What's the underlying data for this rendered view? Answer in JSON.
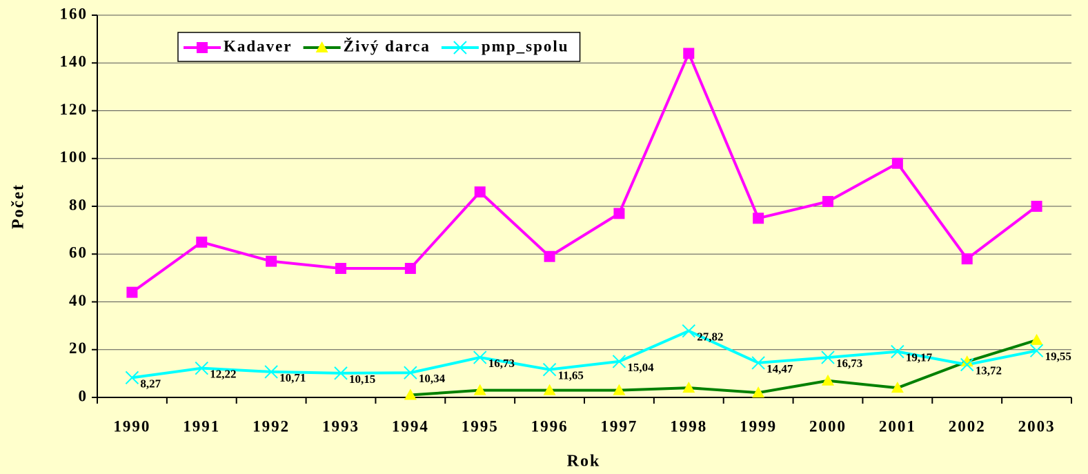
{
  "chart_data": {
    "type": "line",
    "x_label": "Rok",
    "y_label": "Počet",
    "categories": [
      "1990",
      "1991",
      "1992",
      "1993",
      "1994",
      "1995",
      "1996",
      "1997",
      "1998",
      "1999",
      "2000",
      "2001",
      "2002",
      "2003"
    ],
    "series": [
      {
        "name": "Kadaver",
        "color": "#ff00ff",
        "marker": "square",
        "values": [
          44,
          65,
          57,
          54,
          54,
          86,
          59,
          77,
          144,
          75,
          82,
          98,
          58,
          80
        ]
      },
      {
        "name": "Živý darca",
        "color": "#008000",
        "marker_color": "#ffff00",
        "marker": "triangle",
        "values": [
          null,
          null,
          null,
          null,
          1,
          3,
          3,
          3,
          4,
          2,
          7,
          4,
          15,
          24
        ]
      },
      {
        "name": "pmp_spolu",
        "color": "#00ffff",
        "marker": "x",
        "values": [
          8.27,
          12.22,
          10.71,
          10.15,
          10.34,
          16.73,
          11.65,
          15.04,
          27.82,
          14.47,
          16.73,
          19.17,
          13.72,
          19.55
        ],
        "value_labels": [
          "8,27",
          "12,22",
          "10,71",
          "10,15",
          "10,34",
          "16,73",
          "11,65",
          "15,04",
          "27,82",
          "14,47",
          "16,73",
          "19,17",
          "13,72",
          "19,55"
        ]
      }
    ],
    "ylim": [
      0,
      160
    ],
    "yticks": [
      0,
      20,
      40,
      60,
      80,
      100,
      120,
      140,
      160
    ],
    "grid": true,
    "legend": "top-left"
  }
}
